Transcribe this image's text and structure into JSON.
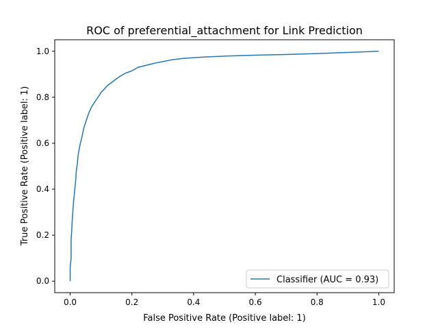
{
  "chart_data": {
    "type": "line",
    "title": "ROC of preferential_attachment for Link Prediction",
    "xlabel": "False Positive Rate (Positive label: 1)",
    "ylabel": "True Positive Rate (Positive label: 1)",
    "xlim": [
      -0.05,
      1.05
    ],
    "ylim": [
      -0.05,
      1.05
    ],
    "xticks": [
      0.0,
      0.2,
      0.4,
      0.6,
      0.8,
      1.0
    ],
    "yticks": [
      0.0,
      0.2,
      0.4,
      0.6,
      0.8,
      1.0
    ],
    "xtick_labels": [
      "0.0",
      "0.2",
      "0.4",
      "0.6",
      "0.8",
      "1.0"
    ],
    "ytick_labels": [
      "0.0",
      "0.2",
      "0.4",
      "0.6",
      "0.8",
      "1.0"
    ],
    "grid": false,
    "legend_position": "bottom-right",
    "series": [
      {
        "name": "Classifier (AUC = 0.93)",
        "color": "#1f77b4",
        "x": [
          0.0,
          0.0,
          0.003,
          0.003,
          0.005,
          0.006,
          0.008,
          0.01,
          0.012,
          0.015,
          0.018,
          0.02,
          0.023,
          0.026,
          0.03,
          0.033,
          0.037,
          0.04,
          0.045,
          0.05,
          0.055,
          0.06,
          0.065,
          0.07,
          0.075,
          0.08,
          0.09,
          0.1,
          0.11,
          0.12,
          0.13,
          0.14,
          0.15,
          0.16,
          0.18,
          0.2,
          0.22,
          0.25,
          0.28,
          0.3,
          0.33,
          0.36,
          0.4,
          0.45,
          0.5,
          0.55,
          0.6,
          0.7,
          0.8,
          0.9,
          1.0
        ],
        "y": [
          0.0,
          0.06,
          0.1,
          0.18,
          0.22,
          0.25,
          0.29,
          0.33,
          0.36,
          0.4,
          0.44,
          0.48,
          0.51,
          0.55,
          0.58,
          0.6,
          0.62,
          0.64,
          0.67,
          0.69,
          0.71,
          0.73,
          0.745,
          0.76,
          0.77,
          0.78,
          0.8,
          0.82,
          0.835,
          0.85,
          0.86,
          0.87,
          0.88,
          0.89,
          0.905,
          0.915,
          0.93,
          0.94,
          0.95,
          0.955,
          0.963,
          0.968,
          0.972,
          0.976,
          0.979,
          0.981,
          0.983,
          0.986,
          0.99,
          0.995,
          1.0
        ]
      }
    ]
  }
}
